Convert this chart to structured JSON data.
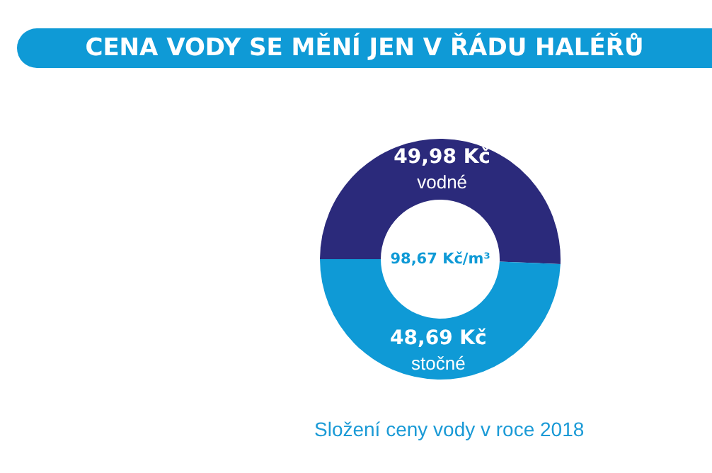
{
  "chart_data": {
    "type": "donut",
    "title": "CENA VODY SE MĚNÍ JEN V ŘÁDU HALÉŘŮ",
    "subtitle": "Složení ceny vody v roce 2018",
    "categories": [
      "vodné",
      "stočné"
    ],
    "values": [
      49.98,
      48.69
    ],
    "value_labels": [
      "49,98 Kč",
      "48,69 Kč"
    ],
    "colors": [
      "#2b2a7b",
      "#0f9ad6"
    ],
    "annotations": [
      "98,67 Kč/m³"
    ],
    "legend": false
  }
}
